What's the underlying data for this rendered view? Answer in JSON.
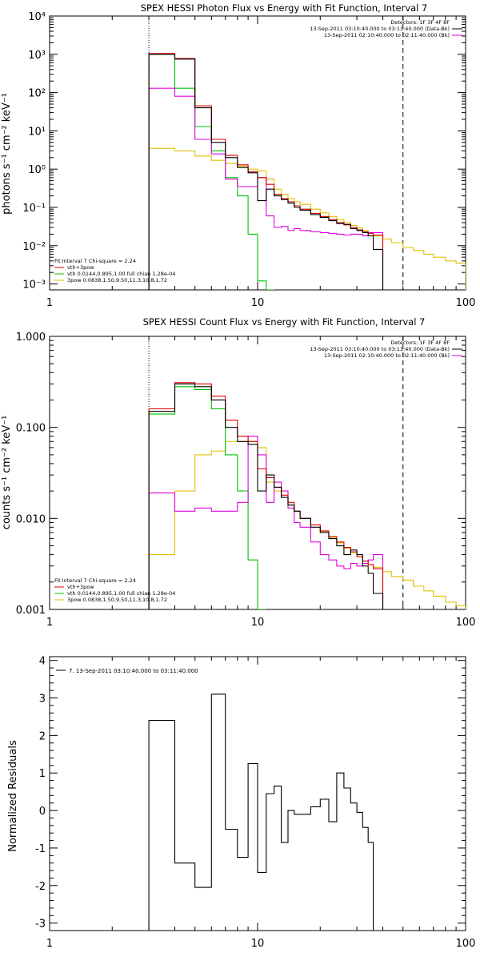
{
  "panels": [
    {
      "title": "SPEX HESSI Photon Flux vs Energy with Fit Function, Interval 7",
      "ylabel": "photons s⁻¹ cm⁻² keV⁻¹",
      "legend_top": [
        "Detectors: 1F 3F 4F 8F",
        "13-Sep-2011 03:10:40.000 to 03:11:40.000 (Data-Bk)",
        "13-Sep-2011 02:10:40.000 to 02:11:40.000 (Bk)"
      ],
      "legend_bottom": [
        "Fit Interval 7   Chi-square = 2.24",
        "vth+3pow",
        "vth 0.0144,0.895,1.00  full chian 1.28e-04",
        "3pow 0.0838,1.50,9.50,11.3,10.8,1.72"
      ]
    },
    {
      "title": "SPEX HESSI Count Flux vs Energy with Fit Function, Interval 7",
      "ylabel": "counts s⁻¹ cm⁻² keV⁻¹",
      "legend_top": [
        "Detectors: 1F 3F 4F 8F",
        "13-Sep-2011 03:10:40.000 to 03:11:40.000 (Data-Bk)",
        "13-Sep-2011 02:10:40.000 to 02:11:40.000 (Bk)"
      ],
      "legend_bottom": [
        "Fit Interval 7   Chi-square = 2.24",
        "vth+3pow",
        "vth 0.0144,0.895,1.00  full chian 1.28e-04",
        "3pow 0.0838,1.50,9.50,11.3,10.8,1.72"
      ]
    },
    {
      "title": "",
      "ylabel": "Normalized Residuals",
      "legend_top": [
        "7. 13-Sep-2011 03:10:40.000 to 03:11:40.000"
      ],
      "legend_bottom": []
    }
  ],
  "colors": {
    "data": "#000000",
    "total": "#e00000",
    "vth": "#00c000",
    "pow": "#e0c000",
    "bk": "#e000e0"
  },
  "chart_data": [
    {
      "type": "line",
      "title": "SPEX HESSI Photon Flux vs Energy with Fit Function, Interval 7",
      "xlabel": "",
      "ylabel": "photons s-1 cm-2 keV-1",
      "xscale": "log",
      "yscale": "log",
      "xlim": [
        1,
        100
      ],
      "ylim": [
        0.0007,
        10000
      ],
      "x_ticks": [
        1,
        10,
        100
      ],
      "y_ticks": [
        0.001,
        0.01,
        0.1,
        1,
        10,
        100,
        1000,
        10000
      ],
      "y_tick_labels": [
        "10⁻³",
        "10⁻²",
        "10⁻¹",
        "10⁰",
        "10¹",
        "10²",
        "10³",
        "10⁴"
      ],
      "x_tick_labels": [
        "1",
        "10",
        "100"
      ],
      "edges": [
        3,
        4,
        5,
        6,
        7,
        8,
        9,
        10,
        11,
        12,
        13,
        14,
        15,
        16,
        18,
        20,
        22,
        24,
        26,
        28,
        30,
        32,
        34,
        36,
        40,
        44,
        50,
        56,
        63,
        70,
        80,
        90,
        100
      ],
      "vlines": [
        {
          "x": 3,
          "style": "dotted"
        },
        {
          "x": 50,
          "style": "dashed"
        }
      ],
      "series": [
        {
          "name": "Data-Bk",
          "color_key": "data",
          "values": [
            1000,
            750,
            40,
            5,
            2,
            1.1,
            0.8,
            0.15,
            0.3,
            0.2,
            0.16,
            0.13,
            0.1,
            0.085,
            0.065,
            0.055,
            0.045,
            0.038,
            0.036,
            0.028,
            0.025,
            0.022,
            0.018,
            0.008
          ]
        },
        {
          "name": "vth+3pow",
          "color_key": "total",
          "values": [
            1050,
            780,
            45,
            6,
            2.3,
            1.3,
            0.85,
            0.6,
            0.4,
            0.22,
            0.17,
            0.14,
            0.11,
            0.09,
            0.07,
            0.058,
            0.048,
            0.04,
            0.035,
            0.03,
            0.026,
            0.023,
            0.021,
            0.019
          ]
        },
        {
          "name": "vth",
          "color_key": "vth",
          "values": [
            1000,
            130,
            13,
            3,
            0.6,
            0.2,
            0.02,
            0.0012,
            0.0007
          ]
        },
        {
          "name": "3pow",
          "color_key": "pow",
          "values": [
            3.5,
            3.0,
            2.2,
            1.7,
            1.4,
            1.2,
            1.0,
            0.9,
            0.55,
            0.3,
            0.22,
            0.17,
            0.14,
            0.12,
            0.09,
            0.072,
            0.058,
            0.048,
            0.04,
            0.034,
            0.029,
            0.025,
            0.021,
            0.018,
            0.015,
            0.012,
            0.009,
            0.0075,
            0.006,
            0.005,
            0.004,
            0.0035
          ]
        },
        {
          "name": "Bk",
          "color_key": "bk",
          "values": [
            130,
            80,
            6,
            2.5,
            0.55,
            0.35,
            0.35,
            0.6,
            0.06,
            0.03,
            0.032,
            0.025,
            0.028,
            0.025,
            0.023,
            0.022,
            0.021,
            0.02,
            0.019,
            0.02,
            0.02,
            0.018,
            0.022,
            0.022
          ]
        }
      ]
    },
    {
      "type": "line",
      "title": "SPEX HESSI Count Flux vs Energy with Fit Function, Interval 7",
      "xlabel": "",
      "ylabel": "counts s-1 cm-2 keV-1",
      "xscale": "log",
      "yscale": "log",
      "xlim": [
        1,
        100
      ],
      "ylim": [
        0.001,
        1.0
      ],
      "x_ticks": [
        1,
        10,
        100
      ],
      "y_ticks": [
        0.001,
        0.01,
        0.1,
        1.0
      ],
      "y_tick_labels": [
        "0.001",
        "0.010",
        "0.100",
        "1.000"
      ],
      "x_tick_labels": [
        "1",
        "10",
        "100"
      ],
      "edges": [
        3,
        4,
        5,
        6,
        7,
        8,
        9,
        10,
        11,
        12,
        13,
        14,
        15,
        16,
        18,
        20,
        22,
        24,
        26,
        28,
        30,
        32,
        34,
        36,
        40,
        44,
        50,
        56,
        63,
        70,
        80,
        90,
        100
      ],
      "vlines": [
        {
          "x": 3,
          "style": "dotted"
        },
        {
          "x": 50,
          "style": "dashed"
        }
      ],
      "series": [
        {
          "name": "Data-Bk",
          "color_key": "data",
          "values": [
            0.15,
            0.3,
            0.28,
            0.2,
            0.1,
            0.07,
            0.065,
            0.02,
            0.03,
            0.022,
            0.017,
            0.014,
            0.012,
            0.01,
            0.008,
            0.007,
            0.006,
            0.005,
            0.004,
            0.0045,
            0.004,
            0.003,
            0.0025,
            0.0015
          ]
        },
        {
          "name": "vth+3pow",
          "color_key": "total",
          "values": [
            0.16,
            0.31,
            0.3,
            0.22,
            0.12,
            0.08,
            0.07,
            0.035,
            0.028,
            0.022,
            0.018,
            0.015,
            0.012,
            0.01,
            0.0085,
            0.0073,
            0.0063,
            0.0055,
            0.0048,
            0.0043,
            0.0038,
            0.0034,
            0.0031,
            0.0028
          ]
        },
        {
          "name": "vth",
          "color_key": "vth",
          "values": [
            0.14,
            0.28,
            0.26,
            0.16,
            0.05,
            0.02,
            0.0035,
            0.0009
          ]
        },
        {
          "name": "3pow",
          "color_key": "pow",
          "values": [
            0.004,
            0.02,
            0.05,
            0.055,
            0.07,
            0.07,
            0.07,
            0.06,
            0.025,
            0.02,
            0.017,
            0.014,
            0.012,
            0.01,
            0.0085,
            0.0072,
            0.0062,
            0.0054,
            0.0047,
            0.0042,
            0.0038,
            0.0034,
            0.0031,
            0.0029,
            0.0026,
            0.0023,
            0.0021,
            0.0018,
            0.0016,
            0.0014,
            0.0012,
            0.0011
          ]
        },
        {
          "name": "Bk",
          "color_key": "bk",
          "values": [
            0.019,
            0.012,
            0.013,
            0.012,
            0.012,
            0.015,
            0.08,
            0.05,
            0.015,
            0.025,
            0.02,
            0.013,
            0.009,
            0.008,
            0.0055,
            0.004,
            0.0035,
            0.003,
            0.0028,
            0.0032,
            0.003,
            0.0032,
            0.0035,
            0.004
          ]
        }
      ]
    },
    {
      "type": "line",
      "title": "",
      "xlabel": "",
      "ylabel": "Normalized Residuals",
      "xscale": "log",
      "yscale": "linear",
      "xlim": [
        1,
        100
      ],
      "ylim": [
        -3.2,
        4.1
      ],
      "x_ticks": [
        1,
        10,
        100
      ],
      "y_ticks": [
        -3,
        -2,
        -1,
        0,
        1,
        2,
        3,
        4
      ],
      "y_tick_labels": [
        "-3",
        "-2",
        "-1",
        "0",
        "1",
        "2",
        "3",
        "4"
      ],
      "x_tick_labels": [
        "1",
        "10",
        "100"
      ],
      "edges": [
        3,
        4,
        5,
        6,
        7,
        8,
        9,
        10,
        11,
        12,
        13,
        14,
        15,
        16,
        18,
        20,
        22,
        24,
        26,
        28,
        30,
        32,
        34,
        36,
        40,
        44,
        50
      ],
      "vlines": [],
      "baseline": -3.2,
      "series": [
        {
          "name": "7. 13-Sep-2011 03:10:40.000 to 03:11:40.000",
          "color_key": "data",
          "values": [
            2.4,
            -1.4,
            -2.05,
            3.1,
            -0.5,
            -1.25,
            1.25,
            -1.65,
            0.45,
            0.65,
            -0.85,
            0.0,
            -0.1,
            -0.1,
            0.1,
            0.3,
            -0.3,
            1.0,
            0.6,
            0.2,
            -0.05,
            -0.45,
            -0.85,
            -3.2
          ]
        }
      ]
    }
  ]
}
